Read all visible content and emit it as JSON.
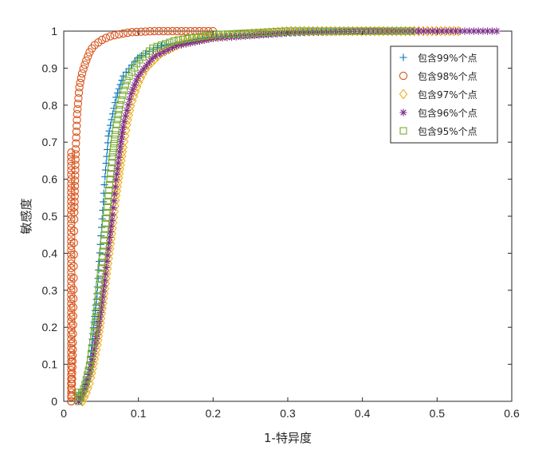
{
  "chart_data": {
    "type": "scatter",
    "title": "",
    "xlabel": "1-特异度",
    "ylabel": "敏感度",
    "xlim": [
      0,
      0.6
    ],
    "ylim": [
      0,
      1
    ],
    "x_ticks": [
      "0",
      "0.1",
      "0.2",
      "0.3",
      "0.4",
      "0.5",
      "0.6"
    ],
    "y_ticks": [
      "0",
      "0.1",
      "0.2",
      "0.3",
      "0.4",
      "0.5",
      "0.6",
      "0.7",
      "0.8",
      "0.9",
      "1"
    ],
    "grid": false,
    "legend_position": "top-right",
    "series": [
      {
        "name": "包含99%个点",
        "marker": "plus",
        "color": "#0072BD",
        "x_end": 0.48,
        "points": [
          [
            0.02,
            0.0
          ],
          [
            0.025,
            0.02
          ],
          [
            0.03,
            0.05
          ],
          [
            0.035,
            0.1
          ],
          [
            0.04,
            0.2
          ],
          [
            0.045,
            0.3
          ],
          [
            0.05,
            0.45
          ],
          [
            0.055,
            0.6
          ],
          [
            0.06,
            0.72
          ],
          [
            0.07,
            0.82
          ],
          [
            0.08,
            0.88
          ],
          [
            0.1,
            0.93
          ],
          [
            0.13,
            0.96
          ],
          [
            0.18,
            0.98
          ],
          [
            0.25,
            0.99
          ],
          [
            0.35,
            1.0
          ],
          [
            0.48,
            1.0
          ]
        ]
      },
      {
        "name": "包含98%个点",
        "marker": "circle",
        "color": "#D95319",
        "x_end": 0.2,
        "points": [
          [
            0.01,
            0.0
          ],
          [
            0.011,
            0.05
          ],
          [
            0.012,
            0.15
          ],
          [
            0.013,
            0.3
          ],
          [
            0.014,
            0.5
          ],
          [
            0.016,
            0.68
          ],
          [
            0.018,
            0.78
          ],
          [
            0.021,
            0.85
          ],
          [
            0.025,
            0.89
          ],
          [
            0.03,
            0.92
          ],
          [
            0.035,
            0.945
          ],
          [
            0.04,
            0.96
          ],
          [
            0.05,
            0.975
          ],
          [
            0.06,
            0.985
          ],
          [
            0.075,
            0.992
          ],
          [
            0.09,
            0.997
          ],
          [
            0.12,
            1.0
          ],
          [
            0.2,
            1.0
          ]
        ]
      },
      {
        "name": "包含97%个点",
        "marker": "diamond",
        "color": "#EDB120",
        "x_end": 0.53,
        "points": [
          [
            0.025,
            0.0
          ],
          [
            0.03,
            0.02
          ],
          [
            0.035,
            0.05
          ],
          [
            0.04,
            0.1
          ],
          [
            0.045,
            0.15
          ],
          [
            0.05,
            0.22
          ],
          [
            0.055,
            0.3
          ],
          [
            0.06,
            0.38
          ],
          [
            0.065,
            0.46
          ],
          [
            0.07,
            0.55
          ],
          [
            0.075,
            0.62
          ],
          [
            0.08,
            0.69
          ],
          [
            0.085,
            0.75
          ],
          [
            0.09,
            0.8
          ],
          [
            0.1,
            0.86
          ],
          [
            0.11,
            0.9
          ],
          [
            0.13,
            0.94
          ],
          [
            0.16,
            0.97
          ],
          [
            0.2,
            0.985
          ],
          [
            0.3,
            1.0
          ],
          [
            0.53,
            1.0
          ]
        ]
      },
      {
        "name": "包含96%个点",
        "marker": "asterisk",
        "color": "#7E2F8E",
        "x_end": 0.585,
        "points": [
          [
            0.02,
            0.0
          ],
          [
            0.028,
            0.03
          ],
          [
            0.035,
            0.08
          ],
          [
            0.042,
            0.15
          ],
          [
            0.05,
            0.25
          ],
          [
            0.055,
            0.33
          ],
          [
            0.06,
            0.42
          ],
          [
            0.065,
            0.5
          ],
          [
            0.07,
            0.6
          ],
          [
            0.075,
            0.68
          ],
          [
            0.08,
            0.75
          ],
          [
            0.09,
            0.83
          ],
          [
            0.1,
            0.88
          ],
          [
            0.12,
            0.93
          ],
          [
            0.15,
            0.96
          ],
          [
            0.2,
            0.98
          ],
          [
            0.3,
            0.995
          ],
          [
            0.4,
            1.0
          ],
          [
            0.585,
            1.0
          ]
        ]
      },
      {
        "name": "包含95%个点",
        "marker": "square",
        "color": "#77AC30",
        "x_end": 0.47,
        "points": [
          [
            0.02,
            0.0
          ],
          [
            0.028,
            0.04
          ],
          [
            0.035,
            0.1
          ],
          [
            0.04,
            0.17
          ],
          [
            0.045,
            0.26
          ],
          [
            0.05,
            0.36
          ],
          [
            0.055,
            0.46
          ],
          [
            0.06,
            0.56
          ],
          [
            0.065,
            0.66
          ],
          [
            0.07,
            0.74
          ],
          [
            0.075,
            0.8
          ],
          [
            0.085,
            0.87
          ],
          [
            0.1,
            0.92
          ],
          [
            0.12,
            0.955
          ],
          [
            0.15,
            0.975
          ],
          [
            0.2,
            0.99
          ],
          [
            0.3,
            1.0
          ],
          [
            0.47,
            1.0
          ]
        ]
      }
    ]
  }
}
